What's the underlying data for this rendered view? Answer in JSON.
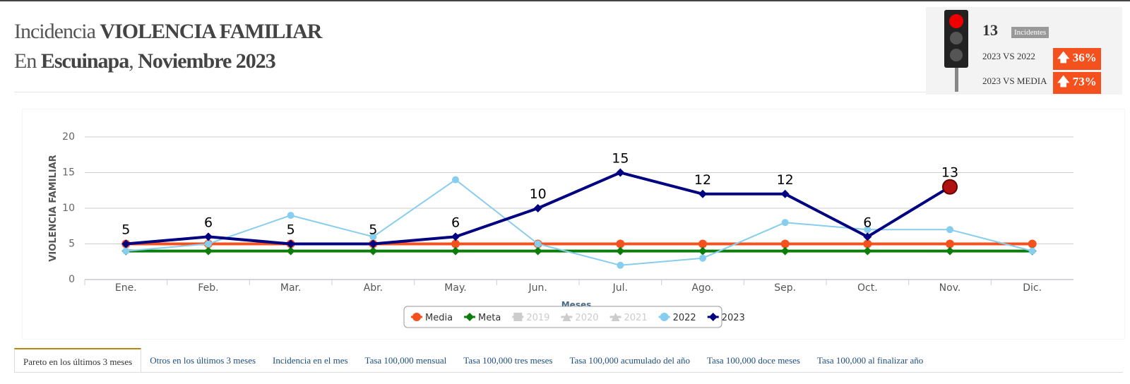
{
  "header": {
    "title": {
      "prefix": "Incidencia",
      "bold": "VIOLENCIA FAMILIAR"
    },
    "subtitle": {
      "prefix": "En",
      "place": "Escuinapa",
      "sep": ",",
      "period": "Noviembre 2023"
    }
  },
  "summary": {
    "count": "13",
    "count_label": "Incidentes",
    "rows": [
      {
        "label": "2023 VS 2022",
        "value": "36%"
      },
      {
        "label": "2023 VS MEDIA",
        "value": "73%"
      }
    ]
  },
  "chart_data": {
    "type": "line",
    "y_label": "VIOLENCIA FAMILIAR",
    "x_label": "Meses",
    "categories": [
      "Ene.",
      "Feb.",
      "Mar.",
      "Abr.",
      "May.",
      "Jun.",
      "Jul.",
      "Ago.",
      "Sep.",
      "Oct.",
      "Nov.",
      "Dic."
    ],
    "ylim": [
      0,
      20
    ],
    "yticks": [
      0,
      5,
      10,
      15,
      20
    ],
    "grid": true,
    "legend": "bottom",
    "series": [
      {
        "name": "Media",
        "color": "#f4511e",
        "marker": "circle",
        "width": 4,
        "visible": true,
        "values": [
          5,
          5,
          5,
          5,
          5,
          5,
          5,
          5,
          5,
          5,
          5,
          5
        ]
      },
      {
        "name": "Meta",
        "color": "#0b7d0b",
        "marker": "diamond",
        "width": 4,
        "visible": true,
        "values": [
          4,
          4,
          4,
          4,
          4,
          4,
          4,
          4,
          4,
          4,
          4,
          4
        ]
      },
      {
        "name": "2019",
        "color": "#cccccc",
        "marker": "square",
        "width": 2,
        "visible": false,
        "values": [
          null,
          null,
          null,
          null,
          null,
          null,
          null,
          null,
          null,
          null,
          null,
          null
        ]
      },
      {
        "name": "2020",
        "color": "#cccccc",
        "marker": "triangle",
        "width": 2,
        "visible": false,
        "values": [
          null,
          null,
          null,
          null,
          null,
          null,
          null,
          null,
          null,
          null,
          null,
          null
        ]
      },
      {
        "name": "2021",
        "color": "#cccccc",
        "marker": "triangle",
        "width": 2,
        "visible": false,
        "values": [
          null,
          null,
          null,
          null,
          null,
          null,
          null,
          null,
          null,
          null,
          null,
          null
        ]
      },
      {
        "name": "2022",
        "color": "#87cdee",
        "marker": "circle",
        "width": 2,
        "visible": true,
        "values": [
          4,
          5,
          9,
          6,
          14,
          5,
          2,
          3,
          8,
          7,
          7,
          4
        ]
      },
      {
        "name": "2023",
        "color": "#000080",
        "marker": "diamond",
        "width": 4,
        "visible": true,
        "labels": true,
        "values": [
          5,
          6,
          5,
          5,
          6,
          10,
          15,
          12,
          12,
          6,
          13,
          null
        ]
      }
    ]
  },
  "tabs": [
    "Pareto en los últimos 3 meses",
    "Otros en los últimos 3 meses",
    "Incidencia en el mes",
    "Tasa 100,000 mensual",
    "Tasa 100,000 tres meses",
    "Tasa 100,000 acumulado del año",
    "Tasa 100,000 doce meses",
    "Tasa 100,000 al finalizar año"
  ]
}
